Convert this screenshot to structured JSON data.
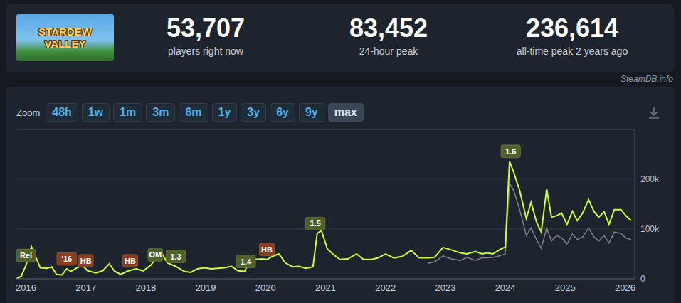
{
  "header": {
    "logo_text": "STARDEW VALLEY",
    "stats": [
      {
        "value": "53,707",
        "label": "players right now"
      },
      {
        "value": "83,452",
        "label": "24-hour peak"
      },
      {
        "value": "236,614",
        "label": "all-time peak 2 years ago"
      }
    ]
  },
  "source": "SteamDB.info",
  "zoom": {
    "label": "Zoom",
    "buttons": [
      "48h",
      "1w",
      "1m",
      "3m",
      "6m",
      "1y",
      "3y",
      "6y",
      "9y",
      "max"
    ],
    "active": "max"
  },
  "chart_data": {
    "type": "line",
    "x": [
      2015.84,
      2015.92,
      2016.0,
      2016.09,
      2016.24,
      2016.35,
      2016.43,
      2016.51,
      2016.6,
      2016.68,
      2016.75,
      2016.85,
      2016.94,
      2017.03,
      2017.17,
      2017.28,
      2017.39,
      2017.48,
      2017.58,
      2017.71,
      2017.84,
      2017.96,
      2018.09,
      2018.25,
      2018.36,
      2018.5,
      2018.64,
      2018.75,
      2018.86,
      2018.98,
      2019.09,
      2019.31,
      2019.43,
      2019.54,
      2019.65,
      2019.73,
      2019.82,
      2019.94,
      2020.03,
      2020.11,
      2020.22,
      2020.33,
      2020.45,
      2020.56,
      2020.67,
      2020.79,
      2020.86,
      2020.93,
      2021.03,
      2021.12,
      2021.24,
      2021.37,
      2021.52,
      2021.63,
      2021.77,
      2021.88,
      2022.0,
      2022.14,
      2022.28,
      2022.43,
      2022.56,
      2022.71,
      2022.82,
      2022.96,
      2023.1,
      2023.25,
      2023.36,
      2023.5,
      2023.61,
      2023.7,
      2023.79,
      2023.9,
      2024.0,
      2024.07,
      2024.14,
      2024.24,
      2024.35,
      2024.43,
      2024.52,
      2024.6,
      2024.69,
      2024.77,
      2024.86,
      2024.94,
      2025.03,
      2025.12,
      2025.2,
      2025.29,
      2025.39,
      2025.48,
      2025.56,
      2025.65,
      2025.73,
      2025.82,
      2025.93,
      2026.01,
      2026.1
    ],
    "series": [
      {
        "color": "#ccff33",
        "values": [
          0,
          5000,
          27000,
          65000,
          22000,
          21000,
          24000,
          9000,
          8000,
          20000,
          15000,
          22000,
          27000,
          16000,
          12000,
          16000,
          30000,
          15000,
          9000,
          16000,
          20000,
          16000,
          28000,
          55000,
          32000,
          25000,
          15000,
          13000,
          20000,
          22000,
          20000,
          22000,
          25000,
          16000,
          15000,
          35000,
          39000,
          40000,
          39000,
          45000,
          50000,
          32000,
          24000,
          25000,
          21000,
          24000,
          91000,
          97000,
          60000,
          50000,
          39000,
          40000,
          50000,
          39000,
          39000,
          42000,
          50000,
          42000,
          45000,
          57000,
          42000,
          42000,
          43000,
          63000,
          58000,
          52000,
          50000,
          55000,
          50000,
          52000,
          50000,
          58000,
          64000,
          236000,
          214000,
          177000,
          121000,
          154000,
          114000,
          94000,
          180000,
          124000,
          127000,
          132000,
          109000,
          136000,
          117000,
          132000,
          159000,
          135000,
          124000,
          135000,
          109000,
          139000,
          139000,
          127000,
          117000
        ]
      },
      {
        "color": "#7d838c",
        "values": [
          null,
          null,
          null,
          null,
          null,
          null,
          null,
          null,
          null,
          null,
          null,
          null,
          null,
          null,
          null,
          null,
          null,
          null,
          null,
          null,
          null,
          null,
          null,
          null,
          null,
          null,
          null,
          null,
          null,
          null,
          null,
          null,
          null,
          null,
          null,
          null,
          null,
          null,
          null,
          null,
          null,
          null,
          null,
          null,
          null,
          null,
          null,
          null,
          null,
          null,
          null,
          null,
          null,
          null,
          null,
          null,
          null,
          null,
          null,
          null,
          null,
          31000,
          34000,
          46000,
          40000,
          37000,
          43000,
          37000,
          42000,
          42000,
          43000,
          46000,
          50000,
          192000,
          177000,
          139000,
          87000,
          102000,
          79000,
          61000,
          102000,
          76000,
          87000,
          82000,
          70000,
          90000,
          79000,
          84000,
          102000,
          84000,
          76000,
          87000,
          72000,
          94000,
          91000,
          82000,
          79000
        ]
      }
    ],
    "xlim": [
      2015.84,
      2026.16
    ],
    "xticks": [
      2016,
      2017,
      2018,
      2019,
      2020,
      2021,
      2022,
      2023,
      2024,
      2025,
      2026
    ],
    "ylim": [
      0,
      300000
    ],
    "yticks": [
      0,
      {
        "value": 100000,
        "label": "100k"
      },
      {
        "value": 200000,
        "label": "200k"
      }
    ],
    "grid": true,
    "annotations": [
      {
        "x": 2016.0,
        "label": "Rel",
        "color": "#4f6128"
      },
      {
        "x": 2016.68,
        "label": "'16",
        "color": "#8a3d1f"
      },
      {
        "x": 2017.0,
        "label": "HB",
        "color": "#8a3d1f"
      },
      {
        "x": 2017.74,
        "label": "HB",
        "color": "#8a3d1f"
      },
      {
        "x": 2018.16,
        "label": "OM",
        "color": "#4f6128"
      },
      {
        "x": 2018.5,
        "label": "1.3",
        "color": "#4f6128"
      },
      {
        "x": 2019.67,
        "label": "1.4",
        "color": "#4f6128"
      },
      {
        "x": 2020.02,
        "label": "HB",
        "color": "#8a3d1f"
      },
      {
        "x": 2020.83,
        "label": "1.5",
        "color": "#4f6128"
      },
      {
        "x": 2024.09,
        "label": "1.6",
        "color": "#4f6128"
      }
    ]
  }
}
